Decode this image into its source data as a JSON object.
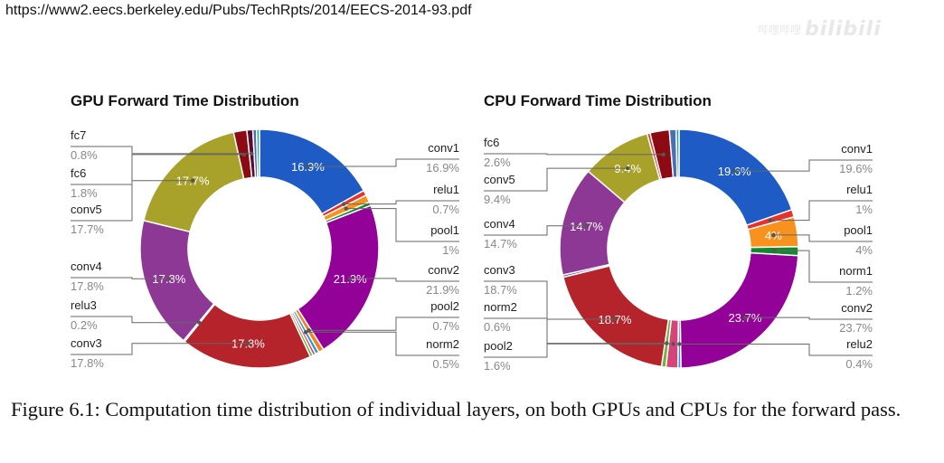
{
  "header": {
    "url": "https://www2.eecs.berkeley.edu/Pubs/TechRpts/2014/EECS-2014-93.pdf",
    "watermark_text": "哔哩哔哩",
    "watermark_logo": "bilibili"
  },
  "caption": "Figure 6.1: Computation time distribution of individual layers, on both GPUs and CPUs for the forward pass.",
  "chart_data": [
    {
      "type": "pie",
      "title": "GPU Forward Time Distribution",
      "donut": true,
      "slices": [
        {
          "label": "conv1",
          "value": 16.9,
          "value_text": "16.9%",
          "color": "#1f5bc4"
        },
        {
          "label": "relu1",
          "value": 0.7,
          "value_text": "0.7%",
          "color": "#e8312a"
        },
        {
          "label": "pool1",
          "value": 1.0,
          "value_text": "1%",
          "color": "#f7921e"
        },
        {
          "label": "",
          "value": 0.5,
          "color": "#0f8a2c"
        },
        {
          "label": "conv2",
          "value": 21.9,
          "value_text": "21.9%",
          "color": "#930199"
        },
        {
          "label": "pool2",
          "value": 0.7,
          "value_text": "0.7%",
          "color": "#f4821e"
        },
        {
          "label": "norm2",
          "value": 0.5,
          "value_text": "0.5%",
          "color": "#2a9ad2"
        },
        {
          "label": "",
          "value": 0.4,
          "color": "#d6457a"
        },
        {
          "label": "",
          "value": 0.4,
          "color": "#6fb23a"
        },
        {
          "label": "conv3",
          "value": 17.8,
          "value_text": "17.8%",
          "color": "#b5232b"
        },
        {
          "label": "relu3",
          "value": 0.2,
          "value_text": "0.2%",
          "color": "#3a53a8"
        },
        {
          "label": "conv4",
          "value": 17.8,
          "value_text": "17.8%",
          "color": "#8e3895"
        },
        {
          "label": "conv5",
          "value": 17.7,
          "value_text": "17.7%",
          "color": "#a8a12a"
        },
        {
          "label": "fc6",
          "value": 1.8,
          "value_text": "1.8%",
          "color": "#8c0a12"
        },
        {
          "label": "fc7",
          "value": 0.8,
          "value_text": "0.8%",
          "color": "#5c0a30"
        },
        {
          "label": "",
          "value": 0.5,
          "color": "#4b6fb5"
        },
        {
          "label": "",
          "value": 0.4,
          "color": "#34a4a0"
        }
      ],
      "inner_labels": [
        "16.9%",
        "21.9%",
        "17.8%",
        "17.8%",
        "17.7%"
      ]
    },
    {
      "type": "pie",
      "title": "CPU Forward Time Distribution",
      "donut": true,
      "slices": [
        {
          "label": "conv1",
          "value": 19.6,
          "value_text": "19.6%",
          "color": "#1f5bc4"
        },
        {
          "label": "relu1",
          "value": 1.0,
          "value_text": "1%",
          "color": "#e8312a"
        },
        {
          "label": "pool1",
          "value": 4.0,
          "value_text": "4%",
          "color": "#f7921e"
        },
        {
          "label": "norm1",
          "value": 1.2,
          "value_text": "1.2%",
          "color": "#0f8a2c"
        },
        {
          "label": "conv2",
          "value": 23.7,
          "value_text": "23.7%",
          "color": "#930199"
        },
        {
          "label": "relu2",
          "value": 0.4,
          "value_text": "0.4%",
          "color": "#2a9ad2"
        },
        {
          "label": "pool2",
          "value": 1.6,
          "value_text": "1.6%",
          "color": "#d6457a"
        },
        {
          "label": "norm2",
          "value": 0.6,
          "value_text": "0.6%",
          "color": "#6fb23a"
        },
        {
          "label": "conv3",
          "value": 18.7,
          "value_text": "18.7%",
          "color": "#b5232b"
        },
        {
          "label": "",
          "value": 0.3,
          "color": "#3a53a8"
        },
        {
          "label": "conv4",
          "value": 14.7,
          "value_text": "14.7%",
          "color": "#8e3895"
        },
        {
          "label": "conv5",
          "value": 9.4,
          "value_text": "9.4%",
          "color": "#a8a12a"
        },
        {
          "label": "",
          "value": 0.4,
          "color": "#e8312a"
        },
        {
          "label": "fc6",
          "value": 2.6,
          "value_text": "2.6%",
          "color": "#8c0a12"
        },
        {
          "label": "",
          "value": 0.9,
          "color": "#4b6fb5"
        },
        {
          "label": "",
          "value": 0.4,
          "color": "#34a4a0"
        }
      ],
      "inner_labels": [
        "19.6%",
        "4%",
        "23.7%",
        "18.7%",
        "14.7%",
        "9.4%"
      ]
    }
  ]
}
